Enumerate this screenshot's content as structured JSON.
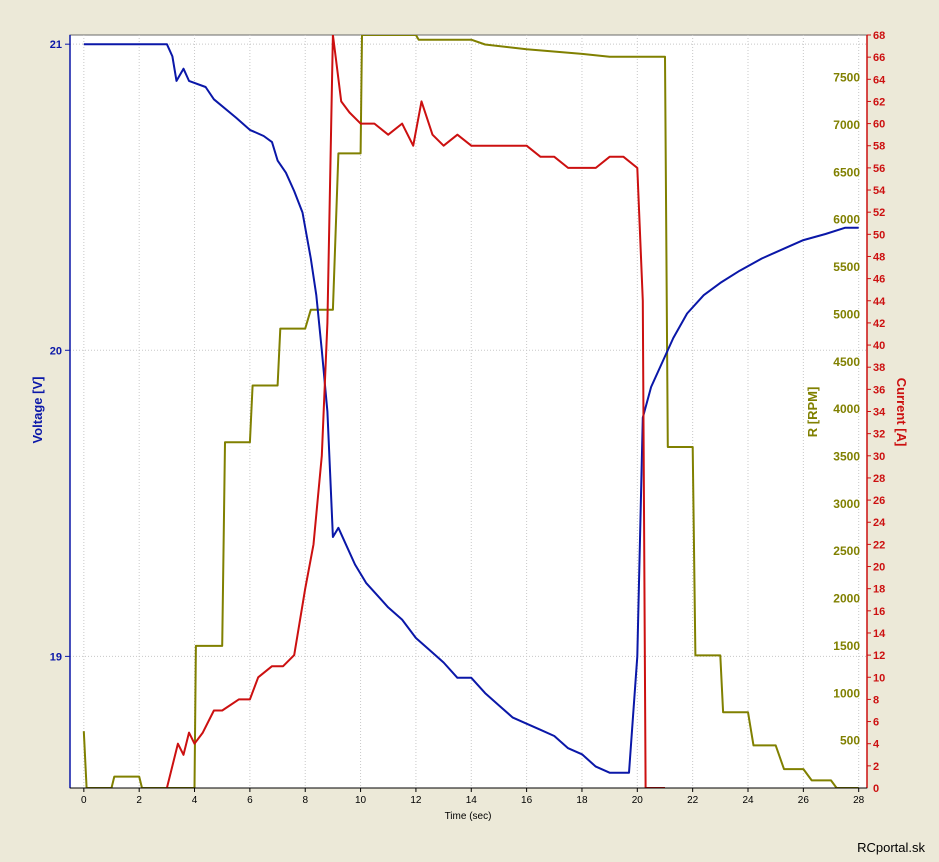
{
  "chart_data": {
    "type": "line",
    "title": "",
    "xlabel": "Time (sec)",
    "xlim": [
      -0.5,
      28.3
    ],
    "x_ticks": [
      0,
      2,
      4,
      6,
      8,
      10,
      12,
      14,
      16,
      18,
      20,
      22,
      24,
      26,
      28
    ],
    "grid": true,
    "axes": {
      "voltage": {
        "label": "Voltage [V]",
        "side": "left",
        "ylim": [
          18.57,
          21.03
        ],
        "ticks": [
          19,
          20,
          21
        ],
        "color": "#0a17a8"
      },
      "rpm": {
        "label": "R [RPM]",
        "side": "right",
        "ylim": [
          0,
          7950
        ],
        "ticks": [
          500,
          1000,
          1500,
          2000,
          2500,
          3000,
          3500,
          4000,
          4500,
          5000,
          5500,
          6000,
          6500,
          7000,
          7500
        ],
        "color": "#808000"
      },
      "current": {
        "label": "Current [A]",
        "side": "right",
        "ylim": [
          0,
          68
        ],
        "ticks": [
          2,
          4,
          6,
          8,
          10,
          12,
          14,
          16,
          18,
          20,
          22,
          24,
          26,
          28,
          30,
          32,
          34,
          36,
          38,
          40,
          42,
          44,
          46,
          48,
          50,
          52,
          54,
          56,
          58,
          60,
          62,
          64,
          66,
          68
        ],
        "bottom_tick": "0",
        "color": "#cc1010"
      }
    },
    "series": [
      {
        "axis": "voltage",
        "color": "#0a17a8",
        "points": [
          [
            0,
            21.0
          ],
          [
            3,
            21.0
          ],
          [
            3.2,
            20.96
          ],
          [
            3.35,
            20.88
          ],
          [
            3.6,
            20.92
          ],
          [
            3.8,
            20.88
          ],
          [
            4.4,
            20.86
          ],
          [
            4.7,
            20.82
          ],
          [
            5.5,
            20.76
          ],
          [
            6.0,
            20.72
          ],
          [
            6.5,
            20.7
          ],
          [
            6.8,
            20.68
          ],
          [
            7.0,
            20.62
          ],
          [
            7.3,
            20.58
          ],
          [
            7.6,
            20.52
          ],
          [
            7.9,
            20.45
          ],
          [
            8.2,
            20.3
          ],
          [
            8.4,
            20.18
          ],
          [
            8.6,
            20.0
          ],
          [
            8.8,
            19.8
          ],
          [
            8.9,
            19.6
          ],
          [
            9.0,
            19.39
          ],
          [
            9.2,
            19.42
          ],
          [
            9.5,
            19.36
          ],
          [
            9.8,
            19.3
          ],
          [
            10.2,
            19.24
          ],
          [
            10.6,
            19.2
          ],
          [
            11.0,
            19.16
          ],
          [
            11.5,
            19.12
          ],
          [
            12.0,
            19.06
          ],
          [
            12.5,
            19.02
          ],
          [
            13.0,
            18.98
          ],
          [
            13.5,
            18.93
          ],
          [
            14.0,
            18.93
          ],
          [
            14.5,
            18.88
          ],
          [
            15.0,
            18.84
          ],
          [
            15.5,
            18.8
          ],
          [
            16.0,
            18.78
          ],
          [
            16.5,
            18.76
          ],
          [
            17.0,
            18.74
          ],
          [
            17.5,
            18.7
          ],
          [
            18.0,
            18.68
          ],
          [
            18.5,
            18.64
          ],
          [
            19.0,
            18.62
          ],
          [
            19.7,
            18.62
          ],
          [
            20.0,
            19.0
          ],
          [
            20.2,
            19.78
          ],
          [
            20.5,
            19.88
          ],
          [
            20.9,
            19.96
          ],
          [
            21.3,
            20.04
          ],
          [
            21.8,
            20.12
          ],
          [
            22.4,
            20.18
          ],
          [
            23.0,
            20.22
          ],
          [
            23.7,
            20.26
          ],
          [
            24.5,
            20.3
          ],
          [
            25.0,
            20.32
          ],
          [
            25.5,
            20.34
          ],
          [
            26.0,
            20.36
          ],
          [
            26.8,
            20.38
          ],
          [
            27.5,
            20.4
          ],
          [
            28.0,
            20.4
          ]
        ]
      },
      {
        "axis": "rpm",
        "color": "#808000",
        "points": [
          [
            0,
            600
          ],
          [
            0.1,
            0
          ],
          [
            1.0,
            0
          ],
          [
            1.1,
            120
          ],
          [
            2.0,
            120
          ],
          [
            2.1,
            0
          ],
          [
            4.0,
            0
          ],
          [
            4.05,
            1500
          ],
          [
            5.0,
            1500
          ],
          [
            5.1,
            3650
          ],
          [
            6.0,
            3650
          ],
          [
            6.1,
            4250
          ],
          [
            7.0,
            4250
          ],
          [
            7.1,
            4850
          ],
          [
            8.0,
            4850
          ],
          [
            8.2,
            5050
          ],
          [
            9.0,
            5050
          ],
          [
            9.2,
            6700
          ],
          [
            10.0,
            6700
          ],
          [
            10.05,
            7950
          ],
          [
            12.0,
            7950
          ],
          [
            12.1,
            7900
          ],
          [
            14.0,
            7900
          ],
          [
            14.5,
            7850
          ],
          [
            16.0,
            7800
          ],
          [
            18.0,
            7750
          ],
          [
            19.0,
            7720
          ],
          [
            21.0,
            7720
          ],
          [
            21.1,
            3600
          ],
          [
            22.0,
            3600
          ],
          [
            22.1,
            1400
          ],
          [
            23.0,
            1400
          ],
          [
            23.1,
            800
          ],
          [
            24.0,
            800
          ],
          [
            24.2,
            450
          ],
          [
            25.0,
            450
          ],
          [
            25.3,
            200
          ],
          [
            26.0,
            200
          ],
          [
            26.3,
            80
          ],
          [
            27.0,
            80
          ],
          [
            27.2,
            0
          ],
          [
            28.0,
            0
          ]
        ]
      },
      {
        "axis": "current",
        "color": "#cc1010",
        "points": [
          [
            3.0,
            0
          ],
          [
            3.2,
            2
          ],
          [
            3.4,
            4
          ],
          [
            3.6,
            3
          ],
          [
            3.8,
            5
          ],
          [
            4.0,
            4
          ],
          [
            4.3,
            5
          ],
          [
            4.7,
            7
          ],
          [
            5.0,
            7
          ],
          [
            5.6,
            8
          ],
          [
            6.0,
            8
          ],
          [
            6.3,
            10
          ],
          [
            6.8,
            11
          ],
          [
            7.2,
            11
          ],
          [
            7.6,
            12
          ],
          [
            8.0,
            18
          ],
          [
            8.3,
            22
          ],
          [
            8.6,
            30
          ],
          [
            8.8,
            42
          ],
          [
            9.0,
            68
          ],
          [
            9.1,
            66
          ],
          [
            9.3,
            62
          ],
          [
            9.6,
            61
          ],
          [
            10.0,
            60
          ],
          [
            10.5,
            60
          ],
          [
            11.0,
            59
          ],
          [
            11.5,
            60
          ],
          [
            11.9,
            58
          ],
          [
            12.2,
            62
          ],
          [
            12.6,
            59
          ],
          [
            13.0,
            58
          ],
          [
            13.5,
            59
          ],
          [
            14.0,
            58
          ],
          [
            14.5,
            58
          ],
          [
            15.0,
            58
          ],
          [
            16.0,
            58
          ],
          [
            16.5,
            57
          ],
          [
            17.0,
            57
          ],
          [
            17.5,
            56
          ],
          [
            18.0,
            56
          ],
          [
            18.5,
            56
          ],
          [
            19.0,
            57
          ],
          [
            19.5,
            57
          ],
          [
            20.0,
            56
          ],
          [
            20.2,
            44
          ],
          [
            20.3,
            0
          ],
          [
            21.0,
            0
          ]
        ]
      }
    ]
  },
  "footer": {
    "credit": "RCportal.sk"
  }
}
